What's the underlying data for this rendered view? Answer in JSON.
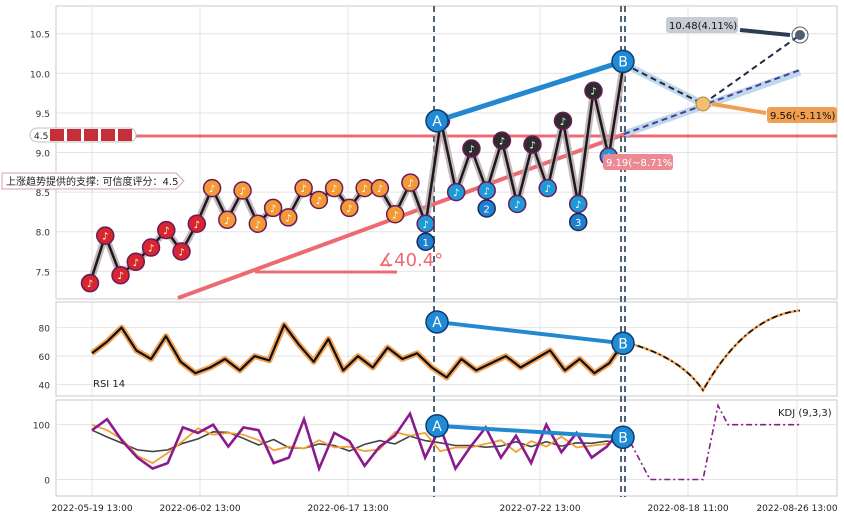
{
  "chart_data": [
    {
      "type": "line",
      "panel": "price",
      "ylim": [
        7.15,
        10.85
      ],
      "yticks": [
        7.5,
        8.0,
        8.5,
        9.0,
        9.5,
        10.0,
        10.5
      ],
      "ytick_labels": [
        "7.5",
        "8.0",
        "8.5",
        "9.0",
        "9.5",
        "10.0",
        "10.5"
      ],
      "series": [
        {
          "values": [
            7.35,
            7.95,
            7.45,
            7.62,
            7.8,
            8.02,
            7.75,
            8.1,
            8.55,
            8.15,
            8.52,
            8.1,
            8.3,
            8.18,
            8.55,
            8.4,
            8.55,
            8.3,
            8.55,
            8.55,
            8.22,
            8.62,
            8.1,
            9.4,
            8.5,
            9.05,
            8.52,
            9.15,
            8.35,
            9.1,
            8.55,
            9.4,
            8.35,
            9.78,
            8.95,
            10.15
          ]
        }
      ],
      "support_level": 9.19,
      "support_axis_label": "4.5",
      "support_text": "上涨趋势提供的支撑: 可信度评分：4.5",
      "angle_label": "∡40.4°",
      "pivots": [
        {
          "label": "A",
          "value": 9.4
        },
        {
          "label": "B",
          "value": 10.15
        }
      ],
      "wave_labels": [
        "1",
        "2",
        "3"
      ],
      "targets": [
        {
          "label": "10.48(4.11%)",
          "value": 10.48
        },
        {
          "label": "9.56(-5.11%)",
          "value": 9.56
        },
        {
          "label": "9.19(~8.71%)",
          "value": 9.19
        }
      ],
      "x_labels": [
        "2022-05-19 13:00",
        "2022-06-02 13:00",
        "2022-06-17 13:00",
        "2022-07-22 13:00",
        "2022-08-18 11:00",
        "2022-08-26 13:00"
      ]
    },
    {
      "type": "line",
      "panel": "rsi",
      "ylim": [
        32,
        98
      ],
      "yticks": [
        40,
        60,
        80
      ],
      "ytick_labels": [
        "40",
        "60",
        "80"
      ],
      "series": [
        {
          "name": "RSI 14",
          "values": [
            62,
            70,
            80,
            64,
            58,
            74,
            56,
            48,
            52,
            58,
            50,
            60,
            57,
            82,
            68,
            56,
            72,
            50,
            60,
            52,
            66,
            58,
            62,
            52,
            45,
            58,
            50,
            55,
            60,
            52,
            58,
            64,
            50,
            58,
            48,
            55,
            70
          ]
        }
      ],
      "pivots": [
        {
          "label": "A",
          "value": 84
        },
        {
          "label": "B",
          "value": 69
        }
      ]
    },
    {
      "type": "line",
      "panel": "kdj",
      "ylim": [
        -30,
        145
      ],
      "yticks": [
        0,
        100
      ],
      "ytick_labels": [
        "0",
        "100"
      ],
      "series": [
        {
          "name": "KDJ (9,3,3)",
          "values": [
            90,
            110,
            70,
            40,
            20,
            30,
            95,
            85,
            100,
            60,
            95,
            90,
            30,
            40,
            110,
            20,
            85,
            70,
            25,
            60,
            80,
            120,
            40,
            95,
            20,
            60,
            95,
            40,
            80,
            30,
            100,
            50,
            85,
            40,
            60,
            95
          ]
        }
      ],
      "pivots": [
        {
          "label": "A",
          "value": 98
        },
        {
          "label": "B",
          "value": 77
        }
      ]
    }
  ]
}
